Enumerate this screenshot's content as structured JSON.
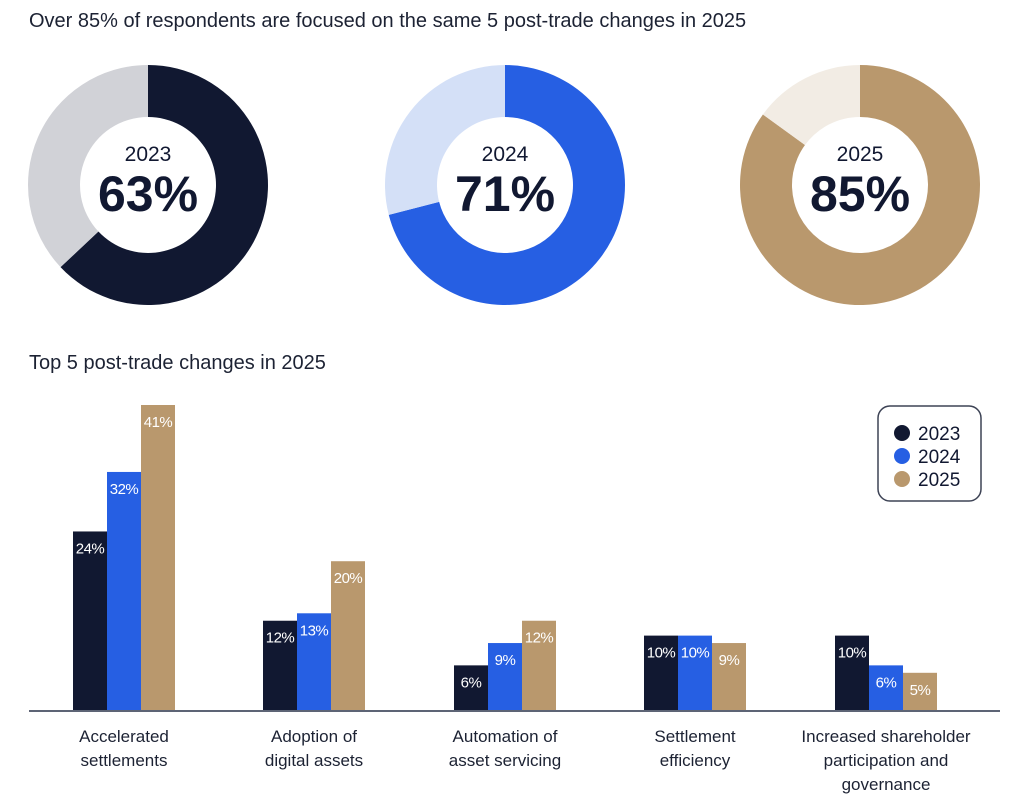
{
  "title": "Over 85% of respondents are focused on the same 5 post-trade changes in 2025",
  "donuts": [
    {
      "year": "2023",
      "label": "63%",
      "value": 63,
      "color": "#111831",
      "rest_color": "#d1d2d7"
    },
    {
      "year": "2024",
      "label": "71%",
      "value": 71,
      "color": "#265fe3",
      "rest_color": "#d4e0f7"
    },
    {
      "year": "2025",
      "label": "85%",
      "value": 85,
      "color": "#b9986d",
      "rest_color": "#f2ece4"
    }
  ],
  "chart_data": {
    "type": "bar",
    "title": "Top 5 post-trade changes in 2025",
    "categories": [
      [
        "Accelerated",
        "settlements"
      ],
      [
        "Adoption of",
        "digital assets"
      ],
      [
        "Automation of",
        "asset servicing"
      ],
      [
        "Settlement",
        "efficiency"
      ],
      [
        "Increased shareholder",
        "participation and",
        "governance"
      ]
    ],
    "series": [
      {
        "name": "2023",
        "color": "#111831",
        "values": [
          24,
          12,
          6,
          10,
          10
        ]
      },
      {
        "name": "2024",
        "color": "#265fe3",
        "values": [
          32,
          13,
          9,
          10,
          6
        ]
      },
      {
        "name": "2025",
        "color": "#b9986d",
        "values": [
          41,
          20,
          12,
          9,
          5
        ]
      }
    ],
    "unit": "%",
    "ylim": [
      0,
      41
    ],
    "legend": "top-right",
    "grid": false
  }
}
